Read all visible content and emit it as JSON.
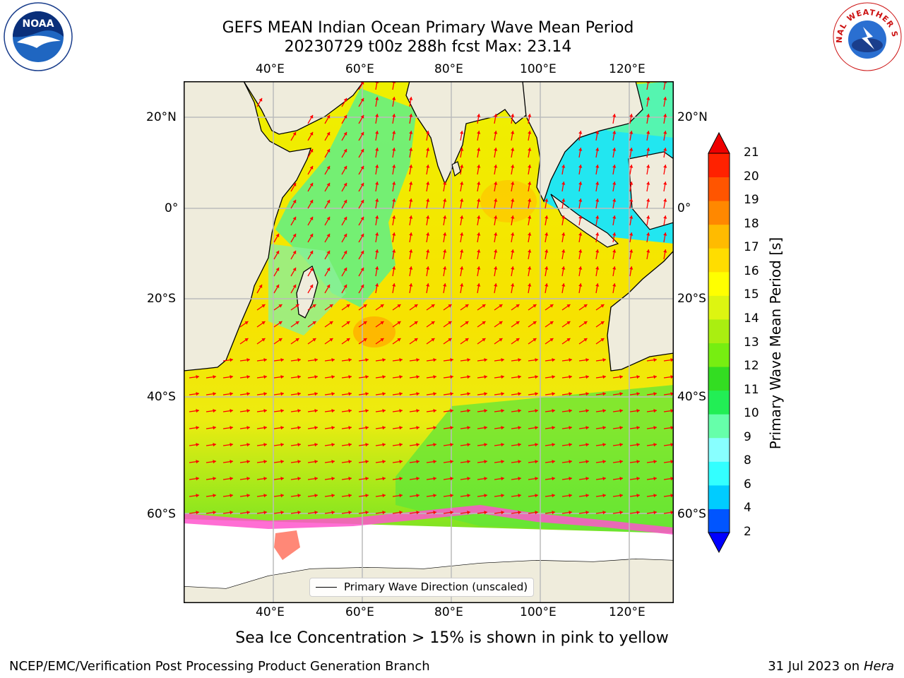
{
  "header": {
    "title_line1": "GEFS MEAN Indian Ocean Primary Wave Mean Period",
    "title_line2": "20230729 t00z 288h fcst   Max: 23.14"
  },
  "axes": {
    "lon_ticks": [
      "40°E",
      "60°E",
      "80°E",
      "100°E",
      "120°E"
    ],
    "lat_ticks": [
      "20°N",
      "0°",
      "20°S",
      "40°S",
      "60°S"
    ],
    "lon_values": [
      40,
      60,
      80,
      100,
      120
    ],
    "lat_values": [
      20,
      0,
      -20,
      -40,
      -60
    ],
    "lon_range": [
      20,
      130
    ],
    "lat_range": [
      -74,
      28
    ],
    "grid": true
  },
  "legend": {
    "label": "Primary Wave Direction (unscaled)"
  },
  "colorbar": {
    "title": "Primary Wave Mean Period [s]",
    "levels": [
      "2",
      "4",
      "6",
      "8",
      "9",
      "10",
      "11",
      "12",
      "13",
      "14",
      "15",
      "16",
      "17",
      "18",
      "19",
      "20",
      "21"
    ],
    "bands": [
      "#0055ff",
      "#00ccff",
      "#33ffff",
      "#88ffff",
      "#66ffaa",
      "#22ee55",
      "#33dd22",
      "#77ee11",
      "#aaee11",
      "#ddf511",
      "#ffff00",
      "#ffdd00",
      "#ffbb00",
      "#ff8800",
      "#ff5500",
      "#ff2200"
    ],
    "under_color": "#0000ff",
    "over_color": "#ee0000"
  },
  "colors": {
    "land": "#efecdc",
    "arrows": "#ff0000",
    "ice": "#ff55cc",
    "grid": "#bbbbbb"
  },
  "notes": {
    "sea_ice": "Sea Ice Concentration > 15% is shown in pink to yellow"
  },
  "footer": {
    "left": "NCEP/EMC/Verification Post Processing Product Generation Branch",
    "right_date": "31 Jul 2023 on ",
    "right_machine": "Hera"
  },
  "logos": {
    "noaa_text": "NOAA",
    "nws_text": "NATIONAL WEATHER SERVICE"
  }
}
